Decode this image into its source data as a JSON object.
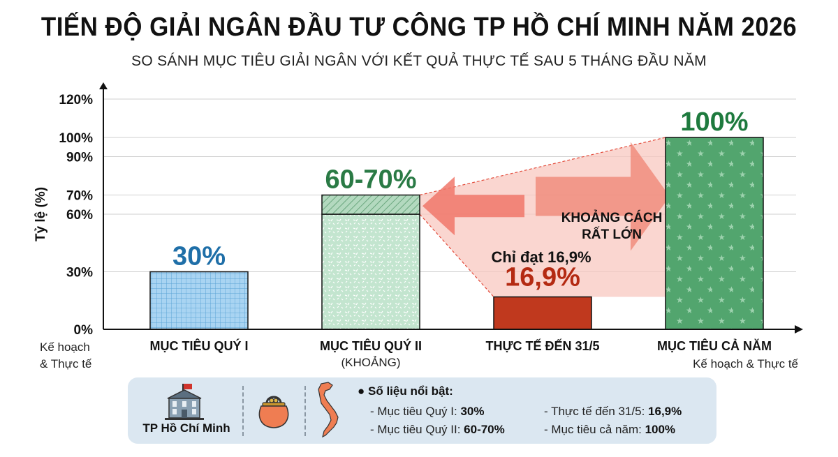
{
  "title": "TIẾN ĐỘ GIẢI NGÂN ĐẦU TƯ CÔNG TP HỒ CHÍ MINH NĂM 2026",
  "subtitle": "SO SÁNH MỤC TIÊU GIẢI NGÂN VỚI KẾT QUẢ THỰC TẾ SAU 5 THÁNG ĐẦU NĂM",
  "chart_data": {
    "type": "bar",
    "ylabel": "Tỷ lệ (%)",
    "ylim": [
      0,
      120
    ],
    "yticks": [
      {
        "value": 0,
        "label": "0%"
      },
      {
        "value": 30,
        "label": "30%"
      },
      {
        "value": 60,
        "label": "60%"
      },
      {
        "value": 70,
        "label": "70%"
      },
      {
        "value": 90,
        "label": "90%"
      },
      {
        "value": 100,
        "label": "100%"
      },
      {
        "value": 120,
        "label": "120%"
      }
    ],
    "grid": true,
    "axis_note_left": "Kế hoạch\n& Thực tế",
    "axis_note_right": "Kế hoạch & Thực tế",
    "categories": [
      "MỤC TIÊU QUÝ I",
      "MỤC TIÊU QUÝ II",
      "THỰC TẾ ĐẾN 31/5",
      "MỤC TIÊU CẢ NĂM"
    ],
    "category_sublabels": [
      "",
      "(KHOẢNG)",
      "",
      ""
    ],
    "bars": [
      {
        "low": 30,
        "high": 30,
        "label": "30%",
        "color": "#a9d4f2",
        "label_color": "#1f6fa8",
        "pattern": "grid"
      },
      {
        "low": 60,
        "high": 70,
        "label": "60-70%",
        "color": "#bfe3cc",
        "label_color": "#2a7a45",
        "pattern": "range"
      },
      {
        "low": 16.9,
        "high": 16.9,
        "label": "16,9%",
        "color": "#c0391e",
        "label_color": "#b42a12",
        "pattern": "solid"
      },
      {
        "low": 100,
        "high": 100,
        "label": "100%",
        "color": "#4ea46b",
        "label_color": "#1e7a3e",
        "pattern": "stars"
      }
    ],
    "annotations": {
      "gap_label": "KHOẢNG CÁCH\nRẤT LỚN",
      "achieved_label": "Chỉ đạt 16,9%"
    }
  },
  "footer": {
    "city": "TP Hồ Chí Minh",
    "icons": [
      "city-hall-icon",
      "purse-icon",
      "vietnam-map-icon"
    ],
    "highlights_title": "Số liệu nổi bật:",
    "items_left": [
      {
        "label": "- Mục tiêu Quý I: ",
        "value": "30%"
      },
      {
        "label": "- Mục tiêu Quý II: ",
        "value": "60-70%"
      }
    ],
    "items_right": [
      {
        "label": "- Thực tế đến 31/5: ",
        "value": "16,9%"
      },
      {
        "label": "- Mục tiêu cả năm: ",
        "value": "100%"
      }
    ]
  }
}
